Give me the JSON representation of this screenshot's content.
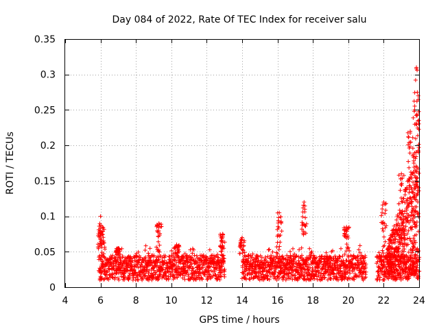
{
  "chart_data": {
    "type": "scatter",
    "title": "Day 084 of 2022, Rate Of TEC Index for receiver salu",
    "xlabel": "GPS time / hours",
    "ylabel": "ROTI / TECUs",
    "xlim": [
      4,
      24
    ],
    "ylim": [
      0,
      0.35
    ],
    "xticks": [
      "4",
      "6",
      "8",
      "10",
      "12",
      "14",
      "16",
      "18",
      "20",
      "22",
      "24"
    ],
    "yticks": [
      "0",
      "0.05",
      "0.1",
      "0.15",
      "0.2",
      "0.25",
      "0.3",
      "0.35"
    ],
    "grid": true,
    "marker": "+",
    "color": "#ff0000",
    "data_ranges": [
      {
        "from": 5.9,
        "to": 13.0
      },
      {
        "from": 14.0,
        "to": 21.0
      },
      {
        "from": 21.6,
        "to": 24.0
      }
    ],
    "typical_range": [
      0.01,
      0.045
    ],
    "peaks": [
      {
        "x": 6.0,
        "y": 0.1
      },
      {
        "x": 6.1,
        "y": 0.085
      },
      {
        "x": 7.0,
        "y": 0.055
      },
      {
        "x": 9.3,
        "y": 0.09
      },
      {
        "x": 10.3,
        "y": 0.06
      },
      {
        "x": 12.9,
        "y": 0.075
      },
      {
        "x": 14.0,
        "y": 0.07
      },
      {
        "x": 16.1,
        "y": 0.105
      },
      {
        "x": 17.5,
        "y": 0.12
      },
      {
        "x": 19.9,
        "y": 0.085
      },
      {
        "x": 22.0,
        "y": 0.12
      },
      {
        "x": 23.0,
        "y": 0.16
      },
      {
        "x": 23.5,
        "y": 0.22
      },
      {
        "x": 23.75,
        "y": 0.25
      },
      {
        "x": 23.85,
        "y": 0.31
      },
      {
        "x": 23.9,
        "y": 0.275
      }
    ]
  }
}
